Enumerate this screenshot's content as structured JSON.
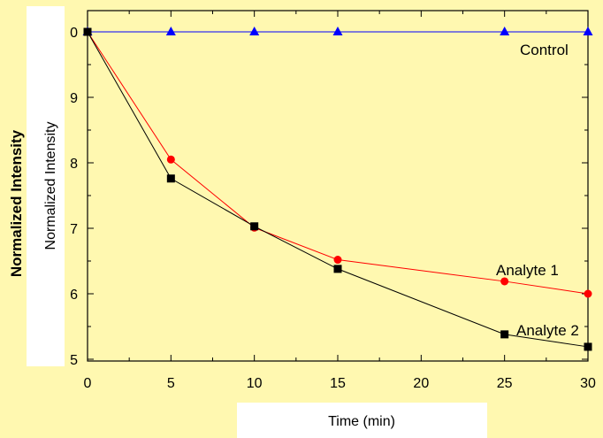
{
  "chart_data": {
    "type": "line",
    "title": "",
    "xlabel": "Time (min)",
    "ylabel": "Normalized Intensity",
    "ylabel_overlay": "Normalized Intensity",
    "xlim": [
      0,
      30
    ],
    "ylim": [
      0.5,
      1.0
    ],
    "x_ticks": [
      0,
      5,
      10,
      15,
      20,
      25,
      30
    ],
    "y_ticks": [
      0.5,
      0.6,
      0.7,
      0.8,
      0.9,
      1.0
    ],
    "y_tick_labels_visible": [
      "5",
      "6",
      "7",
      "8",
      "9",
      "0"
    ],
    "grid": false,
    "legend": "none",
    "series": [
      {
        "name": "Control",
        "color": "#0000ff",
        "marker": "triangle",
        "x": [
          0,
          5,
          10,
          15,
          25,
          30
        ],
        "y": [
          1.0,
          1.0,
          1.0,
          1.0,
          1.0,
          1.0
        ]
      },
      {
        "name": "Analyte 1",
        "color": "#ff0000",
        "marker": "circle",
        "x": [
          0,
          5,
          10,
          15,
          25,
          30
        ],
        "y": [
          1.0,
          0.805,
          0.701,
          0.652,
          0.619,
          0.6
        ]
      },
      {
        "name": "Analyte 2",
        "color": "#000000",
        "marker": "square",
        "x": [
          0,
          5,
          10,
          15,
          25,
          30
        ],
        "y": [
          1.0,
          0.776,
          0.703,
          0.638,
          0.538,
          0.519
        ]
      }
    ]
  },
  "colors": {
    "background": "#fff8b0",
    "plot_area": "#fff8b0",
    "overlay_box": "#ffffff"
  }
}
